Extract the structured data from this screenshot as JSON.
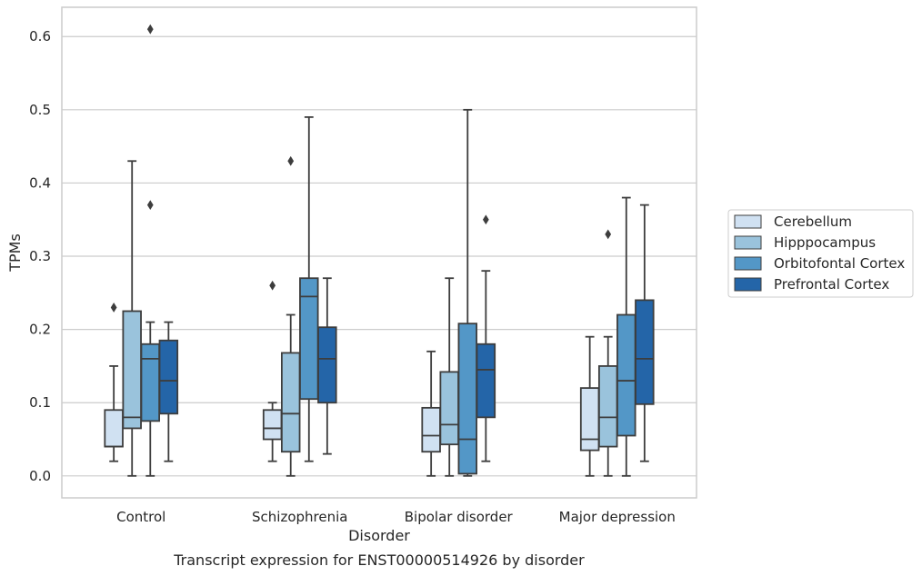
{
  "chart_data": {
    "type": "box",
    "caption": "Transcript expression for ENST00000514926 by disorder",
    "xlabel": "Disorder",
    "ylabel": "TPMs",
    "ylim": [
      -0.03,
      0.64
    ],
    "yticks": [
      "0.0",
      "0.1",
      "0.2",
      "0.3",
      "0.4",
      "0.5",
      "0.6"
    ],
    "grid": true,
    "legend_position": "right",
    "categories": [
      "Control",
      "Schizophrenia",
      "Bipolar disorder",
      "Major depression"
    ],
    "series": [
      {
        "name": "Cerebellum",
        "color": "#d0e1f2",
        "boxes": [
          {
            "whislo": 0.02,
            "q1": 0.04,
            "med": 0.04,
            "q3": 0.09,
            "whishi": 0.15,
            "fliers": [
              0.23
            ]
          },
          {
            "whislo": 0.02,
            "q1": 0.05,
            "med": 0.065,
            "q3": 0.09,
            "whishi": 0.1,
            "fliers": [
              0.26
            ]
          },
          {
            "whislo": 0.0,
            "q1": 0.033,
            "med": 0.055,
            "q3": 0.093,
            "whishi": 0.17,
            "fliers": []
          },
          {
            "whislo": 0.0,
            "q1": 0.035,
            "med": 0.05,
            "q3": 0.12,
            "whishi": 0.19,
            "fliers": []
          }
        ]
      },
      {
        "name": "Hipppocampus",
        "color": "#9ac3dc",
        "boxes": [
          {
            "whislo": 0.0,
            "q1": 0.065,
            "med": 0.08,
            "q3": 0.225,
            "whishi": 0.43,
            "fliers": []
          },
          {
            "whislo": 0.0,
            "q1": 0.033,
            "med": 0.085,
            "q3": 0.168,
            "whishi": 0.22,
            "fliers": [
              0.43
            ]
          },
          {
            "whislo": 0.0,
            "q1": 0.043,
            "med": 0.07,
            "q3": 0.142,
            "whishi": 0.27,
            "fliers": []
          },
          {
            "whislo": 0.0,
            "q1": 0.04,
            "med": 0.08,
            "q3": 0.15,
            "whishi": 0.19,
            "fliers": [
              0.33
            ]
          }
        ]
      },
      {
        "name": "Orbitofontal Cortex",
        "color": "#5397c7",
        "boxes": [
          {
            "whislo": 0.0,
            "q1": 0.075,
            "med": 0.16,
            "q3": 0.18,
            "whishi": 0.21,
            "fliers": [
              0.37,
              0.61
            ]
          },
          {
            "whislo": 0.02,
            "q1": 0.105,
            "med": 0.245,
            "q3": 0.27,
            "whishi": 0.49,
            "fliers": []
          },
          {
            "whislo": 0.0,
            "q1": 0.003,
            "med": 0.05,
            "q3": 0.208,
            "whishi": 0.5,
            "fliers": []
          },
          {
            "whislo": 0.0,
            "q1": 0.055,
            "med": 0.13,
            "q3": 0.22,
            "whishi": 0.38,
            "fliers": []
          }
        ]
      },
      {
        "name": "Prefrontal Cortex",
        "color": "#2465a8",
        "boxes": [
          {
            "whislo": 0.02,
            "q1": 0.085,
            "med": 0.13,
            "q3": 0.185,
            "whishi": 0.21,
            "fliers": []
          },
          {
            "whislo": 0.03,
            "q1": 0.1,
            "med": 0.16,
            "q3": 0.203,
            "whishi": 0.27,
            "fliers": []
          },
          {
            "whislo": 0.02,
            "q1": 0.08,
            "med": 0.145,
            "q3": 0.18,
            "whishi": 0.28,
            "fliers": [
              0.35
            ]
          },
          {
            "whislo": 0.02,
            "q1": 0.098,
            "med": 0.16,
            "q3": 0.24,
            "whishi": 0.37,
            "fliers": []
          }
        ]
      }
    ]
  }
}
